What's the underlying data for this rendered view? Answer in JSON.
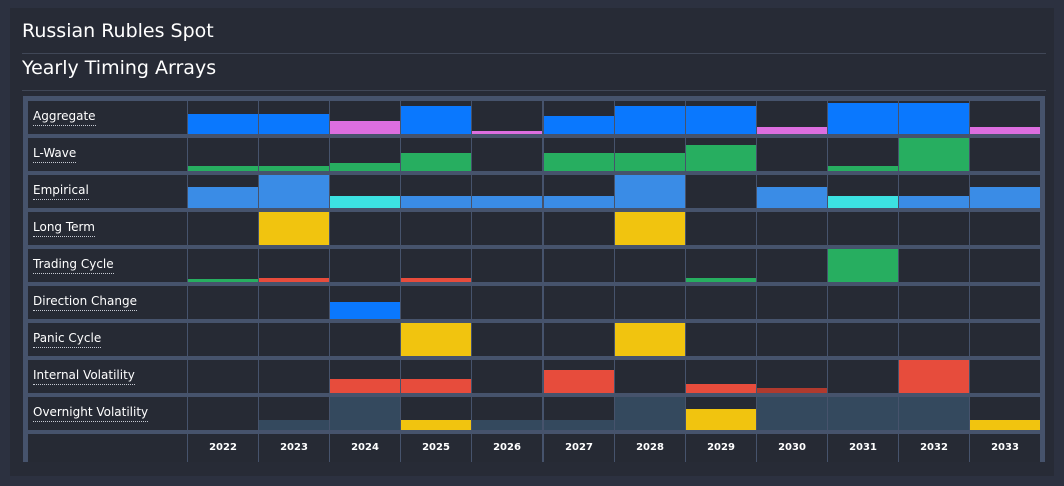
{
  "header": {
    "title": "Russian Rubles Spot",
    "subtitle": "Yearly Timing Arrays"
  },
  "years": [
    "2022",
    "2023",
    "2024",
    "2025",
    "2026",
    "2027",
    "2028",
    "2029",
    "2030",
    "2031",
    "2032",
    "2033"
  ],
  "colors": {
    "blue": "#0a78fe",
    "pink": "#dc6ee0",
    "green": "#27ae60",
    "lightblue": "#3a8ce6",
    "cyan": "#3ce2e2",
    "yellow": "#f1c40f",
    "red": "#e74c3c",
    "darkred": "#b03a2e",
    "slate": "#34495e"
  },
  "rows": [
    {
      "label": "Aggregate",
      "cells": [
        {
          "c": "blue",
          "v": 0.6
        },
        {
          "c": "blue",
          "v": 0.6
        },
        {
          "c": "pink",
          "v": 0.4
        },
        {
          "c": "blue",
          "v": 0.85
        },
        {
          "c": "pink",
          "v": 0.1
        },
        {
          "c": "blue",
          "v": 0.55
        },
        {
          "c": "blue",
          "v": 0.85
        },
        {
          "c": "blue",
          "v": 0.85
        },
        {
          "c": "pink",
          "v": 0.2
        },
        {
          "c": "blue",
          "v": 0.95
        },
        {
          "c": "blue",
          "v": 0.95
        },
        {
          "c": "pink",
          "v": 0.2
        }
      ]
    },
    {
      "label": "L-Wave",
      "cells": [
        {
          "c": "green",
          "v": 0.15
        },
        {
          "c": "green",
          "v": 0.15
        },
        {
          "c": "green",
          "v": 0.25
        },
        {
          "c": "green",
          "v": 0.55
        },
        {
          "c": "green",
          "v": 0
        },
        {
          "c": "green",
          "v": 0.55
        },
        {
          "c": "green",
          "v": 0.55
        },
        {
          "c": "green",
          "v": 0.8
        },
        {
          "c": "green",
          "v": 0
        },
        {
          "c": "green",
          "v": 0.15
        },
        {
          "c": "green",
          "v": 1.0
        },
        {
          "c": "green",
          "v": 0
        }
      ]
    },
    {
      "label": "Empirical",
      "cells": [
        {
          "c": "lightblue",
          "v": 0.65
        },
        {
          "c": "lightblue",
          "v": 1.0
        },
        {
          "c": "cyan",
          "v": 0.35
        },
        {
          "c": "lightblue",
          "v": 0.35
        },
        {
          "c": "lightblue",
          "v": 0.35
        },
        {
          "c": "lightblue",
          "v": 0.35
        },
        {
          "c": "lightblue",
          "v": 1.0
        },
        {
          "c": "lightblue",
          "v": 0
        },
        {
          "c": "lightblue",
          "v": 0.65
        },
        {
          "c": "cyan",
          "v": 0.35
        },
        {
          "c": "lightblue",
          "v": 0.35
        },
        {
          "c": "lightblue",
          "v": 0.65
        }
      ]
    },
    {
      "label": "Long Term",
      "cells": [
        {
          "c": "yellow",
          "v": 0
        },
        {
          "c": "yellow",
          "v": 1.0
        },
        {
          "c": "yellow",
          "v": 0
        },
        {
          "c": "yellow",
          "v": 0
        },
        {
          "c": "yellow",
          "v": 0
        },
        {
          "c": "yellow",
          "v": 0
        },
        {
          "c": "yellow",
          "v": 1.0
        },
        {
          "c": "yellow",
          "v": 0
        },
        {
          "c": "yellow",
          "v": 0
        },
        {
          "c": "yellow",
          "v": 0
        },
        {
          "c": "yellow",
          "v": 0
        },
        {
          "c": "yellow",
          "v": 0
        }
      ]
    },
    {
      "label": "Trading Cycle",
      "cells": [
        {
          "c": "green",
          "v": 0.1
        },
        {
          "c": "red",
          "v": 0.12
        },
        {
          "c": "green",
          "v": 0
        },
        {
          "c": "red",
          "v": 0.12
        },
        {
          "c": "green",
          "v": 0
        },
        {
          "c": "green",
          "v": 0
        },
        {
          "c": "green",
          "v": 0
        },
        {
          "c": "green",
          "v": 0.12
        },
        {
          "c": "green",
          "v": 0
        },
        {
          "c": "green",
          "v": 1.0
        },
        {
          "c": "green",
          "v": 0
        },
        {
          "c": "green",
          "v": 0
        }
      ]
    },
    {
      "label": "Direction Change",
      "cells": [
        {
          "c": "blue",
          "v": 0
        },
        {
          "c": "blue",
          "v": 0
        },
        {
          "c": "blue",
          "v": 0.5
        },
        {
          "c": "blue",
          "v": 0
        },
        {
          "c": "blue",
          "v": 0
        },
        {
          "c": "blue",
          "v": 0
        },
        {
          "c": "blue",
          "v": 0
        },
        {
          "c": "blue",
          "v": 0
        },
        {
          "c": "blue",
          "v": 0
        },
        {
          "c": "blue",
          "v": 0
        },
        {
          "c": "blue",
          "v": 0
        },
        {
          "c": "blue",
          "v": 0
        }
      ]
    },
    {
      "label": "Panic Cycle",
      "cells": [
        {
          "c": "yellow",
          "v": 0
        },
        {
          "c": "yellow",
          "v": 0
        },
        {
          "c": "yellow",
          "v": 0
        },
        {
          "c": "yellow",
          "v": 1.0
        },
        {
          "c": "yellow",
          "v": 0
        },
        {
          "c": "yellow",
          "v": 0
        },
        {
          "c": "yellow",
          "v": 1.0
        },
        {
          "c": "yellow",
          "v": 0
        },
        {
          "c": "yellow",
          "v": 0
        },
        {
          "c": "yellow",
          "v": 0
        },
        {
          "c": "yellow",
          "v": 0
        },
        {
          "c": "yellow",
          "v": 0
        }
      ]
    },
    {
      "label": "Internal Volatility",
      "cells": [
        {
          "c": "red",
          "v": 0
        },
        {
          "c": "red",
          "v": 0
        },
        {
          "c": "red",
          "v": 0.42
        },
        {
          "c": "red",
          "v": 0.42
        },
        {
          "c": "red",
          "v": 0
        },
        {
          "c": "red",
          "v": 0.7
        },
        {
          "c": "red",
          "v": 0
        },
        {
          "c": "red",
          "v": 0.28
        },
        {
          "c": "darkred",
          "v": 0.15
        },
        {
          "c": "red",
          "v": 0
        },
        {
          "c": "red",
          "v": 1.0
        },
        {
          "c": "red",
          "v": 0
        }
      ]
    },
    {
      "label": "Overnight Volatility",
      "cells": [
        {
          "c": "slate",
          "v": 0
        },
        {
          "c": "slate",
          "v": 0.3
        },
        {
          "c": "slate",
          "v": 1.0
        },
        {
          "c": "yellow",
          "v": 0.3
        },
        {
          "c": "slate",
          "v": 0.3
        },
        {
          "c": "slate",
          "v": 0.3
        },
        {
          "c": "slate",
          "v": 1.0
        },
        {
          "c": "yellow",
          "v": 0.65
        },
        {
          "c": "slate",
          "v": 1.0
        },
        {
          "c": "slate",
          "v": 1.0
        },
        {
          "c": "slate",
          "v": 1.0
        },
        {
          "c": "yellow",
          "v": 0.3
        }
      ]
    }
  ]
}
